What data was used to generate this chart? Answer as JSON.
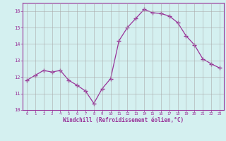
{
  "x": [
    0,
    1,
    2,
    3,
    4,
    5,
    6,
    7,
    8,
    9,
    10,
    11,
    12,
    13,
    14,
    15,
    16,
    17,
    18,
    19,
    20,
    21,
    22,
    23
  ],
  "y": [
    11.8,
    12.1,
    12.4,
    12.3,
    12.4,
    11.8,
    11.5,
    11.15,
    10.4,
    11.3,
    11.9,
    14.2,
    15.0,
    15.55,
    16.1,
    15.9,
    15.85,
    15.7,
    15.3,
    14.5,
    13.95,
    13.1,
    12.8,
    12.55
  ],
  "line_color": "#993399",
  "marker": "+",
  "marker_size": 4,
  "bg_color": "#d4f0f0",
  "grid_color": "#aaaaaa",
  "xlabel": "Windchill (Refroidissement éolien,°C)",
  "xlabel_color": "#993399",
  "tick_color": "#993399",
  "ylim": [
    10,
    16.5
  ],
  "xlim": [
    -0.5,
    23.5
  ],
  "yticks": [
    10,
    11,
    12,
    13,
    14,
    15,
    16
  ],
  "xticks": [
    0,
    1,
    2,
    3,
    4,
    5,
    6,
    7,
    8,
    9,
    10,
    11,
    12,
    13,
    14,
    15,
    16,
    17,
    18,
    19,
    20,
    21,
    22,
    23
  ]
}
